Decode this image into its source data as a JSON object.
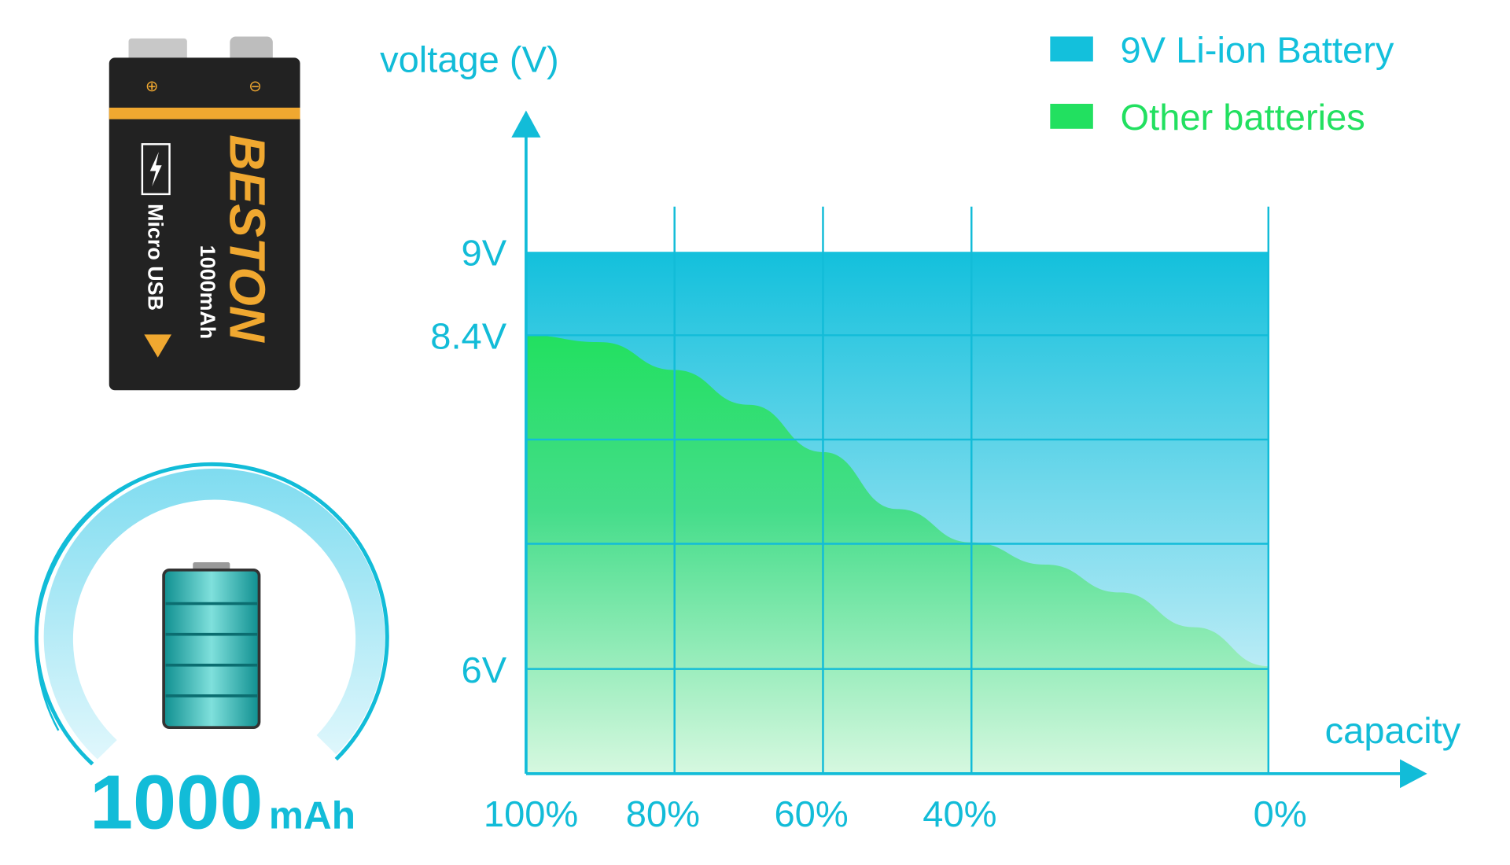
{
  "product": {
    "brand": "BESTON",
    "capacity_label": "1000mAh",
    "port_label": "Micro USB",
    "gauge_value": "1000",
    "gauge_unit": "mAh"
  },
  "colors": {
    "liion": "#13c0dc",
    "other": "#22e060",
    "axis": "#12bcd8",
    "battery_body": "#222222",
    "battery_stripe": "#f0a830"
  },
  "chart_data": {
    "type": "area",
    "title": "",
    "xlabel": "capacity",
    "ylabel": "voltage (V)",
    "x_ticks": [
      "100%",
      "80%",
      "60%",
      "40%",
      "0%"
    ],
    "x_tick_values": [
      100,
      80,
      60,
      40,
      0
    ],
    "y_ticks": [
      "9V",
      "8.4V",
      "6V"
    ],
    "y_tick_values": [
      9,
      8.4,
      6
    ],
    "xlim": [
      100,
      0
    ],
    "ylim": [
      5.25,
      9
    ],
    "grid": true,
    "legend_position": "top-right",
    "series": [
      {
        "name": "9V Li-ion Battery",
        "x": [
          100,
          80,
          60,
          40,
          20,
          0
        ],
        "y": [
          9,
          9,
          9,
          9,
          9,
          9
        ]
      },
      {
        "name": "Other batteries",
        "x": [
          100,
          90,
          80,
          70,
          60,
          50,
          40,
          30,
          20,
          10,
          0
        ],
        "y": [
          8.4,
          8.35,
          8.15,
          7.9,
          7.56,
          7.15,
          6.91,
          6.75,
          6.55,
          6.3,
          6.02
        ]
      }
    ]
  }
}
